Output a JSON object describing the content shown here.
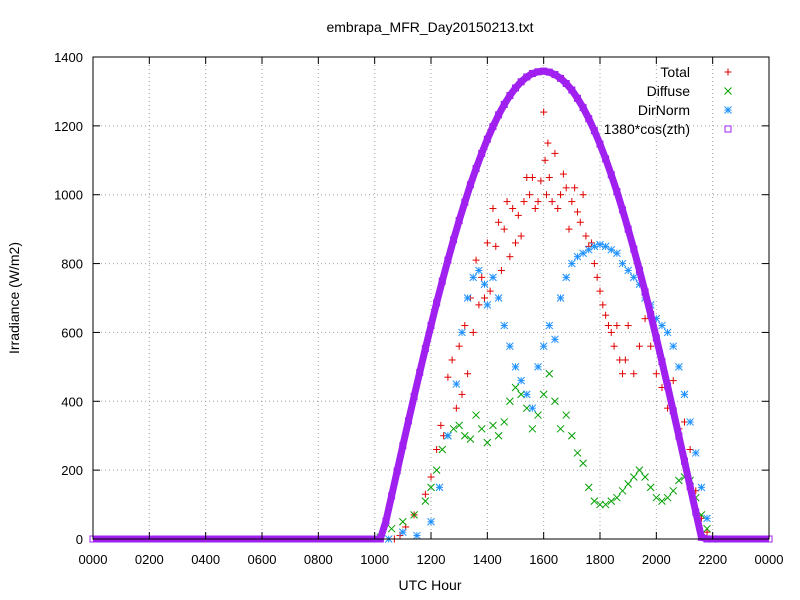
{
  "chart_data": {
    "type": "scatter",
    "title": "embrapa_MFR_Day20150213.txt",
    "xlabel": "UTC Hour",
    "ylabel": "Irradiance (W/m2)",
    "xlim": [
      0,
      24
    ],
    "ylim": [
      0,
      1400
    ],
    "x_ticks": [
      "0000",
      "0200",
      "0400",
      "0600",
      "0800",
      "1000",
      "1200",
      "1400",
      "1600",
      "1800",
      "2000",
      "2200",
      "0000"
    ],
    "y_ticks": [
      0,
      200,
      400,
      600,
      800,
      1000,
      1200,
      1400
    ],
    "grid": true,
    "legend_position": "top-right",
    "series": [
      {
        "name": "Total",
        "marker": "plus",
        "color": "#e00000",
        "x": [
          10.7,
          10.9,
          11.1,
          11.4,
          11.8,
          12.0,
          12.2,
          12.35,
          12.45,
          12.6,
          12.75,
          12.9,
          13.0,
          13.1,
          13.2,
          13.3,
          13.4,
          13.5,
          13.6,
          13.7,
          13.8,
          13.9,
          14.0,
          14.1,
          14.2,
          14.3,
          14.4,
          14.5,
          14.6,
          14.7,
          14.8,
          14.9,
          15.0,
          15.1,
          15.2,
          15.3,
          15.4,
          15.5,
          15.6,
          15.7,
          15.8,
          15.9,
          16.0,
          16.05,
          16.1,
          16.15,
          16.2,
          16.3,
          16.4,
          16.5,
          16.6,
          16.7,
          16.8,
          16.9,
          17.0,
          17.1,
          17.2,
          17.3,
          17.4,
          17.5,
          17.6,
          17.7,
          17.8,
          17.9,
          18.0,
          18.1,
          18.2,
          18.3,
          18.4,
          18.5,
          18.6,
          18.7,
          18.8,
          18.9,
          19.0,
          19.2,
          19.4,
          19.6,
          19.8,
          20.0,
          20.2,
          20.4,
          20.6,
          20.8,
          21.0,
          21.2,
          21.4,
          21.6,
          21.8,
          22.0
        ],
        "y": [
          0,
          10,
          35,
          70,
          130,
          180,
          260,
          330,
          300,
          470,
          520,
          380,
          560,
          420,
          620,
          480,
          700,
          600,
          810,
          680,
          760,
          700,
          860,
          720,
          960,
          850,
          920,
          780,
          900,
          980,
          820,
          960,
          860,
          940,
          880,
          980,
          1050,
          1000,
          1050,
          960,
          980,
          1040,
          1240,
          1100,
          1000,
          1150,
          1050,
          980,
          1120,
          960,
          1000,
          1060,
          1020,
          900,
          980,
          1020,
          950,
          920,
          1000,
          880,
          850,
          860,
          800,
          760,
          720,
          680,
          650,
          620,
          600,
          560,
          620,
          520,
          480,
          520,
          620,
          480,
          560,
          640,
          560,
          480,
          440,
          380,
          460,
          320,
          340,
          260,
          140,
          60,
          20,
          0
        ]
      },
      {
        "name": "Diffuse",
        "marker": "cross",
        "color": "#00a000",
        "x": [
          10.2,
          10.6,
          11.0,
          11.4,
          11.8,
          12.0,
          12.2,
          12.4,
          12.6,
          12.8,
          13.0,
          13.2,
          13.4,
          13.6,
          13.8,
          14.0,
          14.2,
          14.4,
          14.6,
          14.8,
          15.0,
          15.2,
          15.4,
          15.6,
          15.8,
          16.0,
          16.2,
          16.4,
          16.6,
          16.8,
          17.0,
          17.2,
          17.4,
          17.6,
          17.8,
          18.0,
          18.2,
          18.4,
          18.6,
          18.8,
          19.0,
          19.2,
          19.4,
          19.6,
          19.8,
          20.0,
          20.2,
          20.4,
          20.6,
          20.8,
          21.0,
          21.2,
          21.4,
          21.6,
          21.8,
          22.0
        ],
        "y": [
          5,
          30,
          50,
          70,
          110,
          150,
          200,
          260,
          300,
          320,
          330,
          300,
          290,
          360,
          320,
          280,
          330,
          300,
          340,
          400,
          440,
          420,
          380,
          320,
          360,
          420,
          480,
          400,
          320,
          360,
          300,
          250,
          220,
          150,
          110,
          100,
          100,
          110,
          120,
          140,
          160,
          180,
          200,
          180,
          150,
          120,
          110,
          120,
          140,
          170,
          180,
          170,
          120,
          70,
          30,
          0
        ]
      },
      {
        "name": "DirNorm",
        "marker": "star",
        "color": "#1e90ff",
        "x": [
          10.5,
          11.0,
          11.5,
          12.0,
          12.3,
          12.6,
          12.9,
          13.1,
          13.3,
          13.5,
          13.7,
          13.9,
          14.0,
          14.2,
          14.4,
          14.6,
          14.8,
          15.0,
          15.2,
          15.4,
          15.6,
          15.8,
          16.0,
          16.2,
          16.4,
          16.6,
          16.8,
          17.0,
          17.2,
          17.4,
          17.6,
          17.8,
          18.0,
          18.2,
          18.4,
          18.6,
          18.8,
          19.0,
          19.2,
          19.4,
          19.6,
          19.8,
          20.0,
          20.2,
          20.4,
          20.6,
          20.8,
          21.0,
          21.2,
          21.4,
          21.6,
          21.8,
          22.0
        ],
        "y": [
          0,
          20,
          10,
          50,
          150,
          300,
          450,
          600,
          700,
          760,
          780,
          740,
          680,
          760,
          700,
          620,
          560,
          500,
          460,
          420,
          380,
          500,
          560,
          620,
          580,
          700,
          760,
          800,
          820,
          830,
          840,
          850,
          855,
          850,
          840,
          830,
          800,
          780,
          760,
          740,
          700,
          680,
          640,
          620,
          600,
          560,
          500,
          420,
          340,
          250,
          150,
          60,
          0
        ]
      },
      {
        "name": "1380*cos(zth)",
        "marker": "square",
        "color": "#a020f0",
        "x": [
          0,
          1,
          2,
          3,
          4,
          5,
          6,
          7,
          8,
          9,
          10,
          10.2,
          10.4,
          10.6,
          10.8,
          11.0,
          11.2,
          11.4,
          11.6,
          11.8,
          12.0,
          12.2,
          12.4,
          12.6,
          12.8,
          13.0,
          13.2,
          13.4,
          13.6,
          13.8,
          14.0,
          14.2,
          14.4,
          14.6,
          14.8,
          15.0,
          15.2,
          15.4,
          15.6,
          15.8,
          16.0,
          16.2,
          16.4,
          16.6,
          16.8,
          17.0,
          17.2,
          17.4,
          17.6,
          17.8,
          18.0,
          18.2,
          18.4,
          18.6,
          18.8,
          19.0,
          19.2,
          19.4,
          19.6,
          19.8,
          20.0,
          20.2,
          20.4,
          20.6,
          20.8,
          21.0,
          21.2,
          21.4,
          21.6,
          21.8,
          22.0,
          22.2,
          22.4,
          22.6,
          23,
          24
        ],
        "y": [
          0,
          0,
          0,
          0,
          0,
          0,
          0,
          0,
          0,
          0,
          0,
          0,
          52,
          125,
          198,
          271,
          343,
          414,
          484,
          553,
          620,
          686,
          749,
          810,
          869,
          925,
          978,
          1029,
          1076,
          1120,
          1161,
          1198,
          1232,
          1262,
          1288,
          1310,
          1328,
          1342,
          1352,
          1357,
          1359,
          1356,
          1349,
          1338,
          1323,
          1304,
          1280,
          1253,
          1221,
          1186,
          1147,
          1104,
          1058,
          1009,
          956,
          900,
          842,
          781,
          718,
          652,
          584,
          515,
          444,
          372,
          299,
          226,
          152,
          78,
          5,
          0,
          0,
          0,
          0,
          0,
          0,
          0
        ]
      }
    ]
  }
}
